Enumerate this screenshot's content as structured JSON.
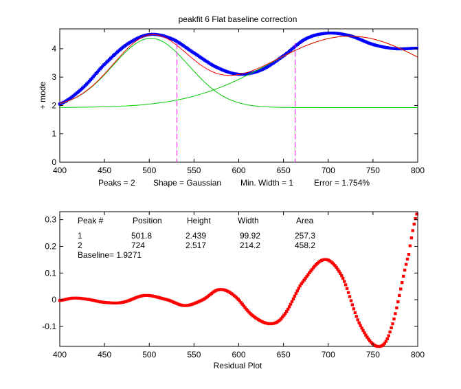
{
  "chart_data": [
    {
      "type": "line",
      "title": "peakfit 6   Flat baseline correction",
      "xlabel": "",
      "ylabel": "+ mode",
      "xlim": [
        400,
        800
      ],
      "ylim": [
        0,
        4.7
      ],
      "xticks": [
        400,
        450,
        500,
        550,
        600,
        650,
        700,
        750,
        800
      ],
      "yticks": [
        0,
        1,
        2,
        3,
        4
      ],
      "grid": false,
      "info_line": [
        "Peaks = 2",
        "Shape = Gaussian",
        "Min. Width = 1",
        "Error = 1.754%"
      ],
      "baseline": 1.9271,
      "components": [
        {
          "position": 501.8,
          "height": 2.439,
          "width": 99.92
        },
        {
          "position": 724,
          "height": 2.517,
          "width": 214.2
        }
      ],
      "markers_x": [
        531,
        663
      ],
      "series": [
        {
          "role": "data",
          "color": "#0000ff",
          "x": [
            400,
            425,
            450,
            475,
            500,
            525,
            550,
            575,
            600,
            625,
            650,
            675,
            700,
            725,
            750,
            775,
            800
          ],
          "y": [
            2.05,
            2.6,
            3.45,
            4.15,
            4.5,
            4.35,
            3.85,
            3.35,
            3.1,
            3.25,
            3.75,
            4.35,
            4.55,
            4.45,
            4.15,
            4.0,
            4.02
          ]
        },
        {
          "role": "fit",
          "color": "#ff0000"
        },
        {
          "role": "component",
          "color": "#00cc00"
        }
      ]
    },
    {
      "type": "line",
      "title": "",
      "xlabel": "Residual Plot",
      "ylabel": "",
      "xlim": [
        400,
        800
      ],
      "ylim": [
        -0.175,
        0.33
      ],
      "xticks": [
        400,
        450,
        500,
        550,
        600,
        650,
        700,
        750,
        800
      ],
      "yticks": [
        -0.1,
        0,
        0.1,
        0.2,
        0.3
      ],
      "grid": false,
      "series": [
        {
          "role": "residual",
          "color": "#ff0000",
          "x": [
            400,
            415,
            430,
            450,
            470,
            495,
            520,
            540,
            560,
            578,
            595,
            615,
            635,
            650,
            670,
            695,
            715,
            735,
            755,
            770,
            790,
            800
          ],
          "y": [
            -0.003,
            0.006,
            0.002,
            -0.01,
            -0.01,
            0.016,
            0.0,
            -0.022,
            0.0,
            0.038,
            0.015,
            -0.058,
            -0.09,
            -0.06,
            0.06,
            0.15,
            0.09,
            -0.09,
            -0.175,
            -0.11,
            0.17,
            0.33
          ]
        }
      ],
      "table": {
        "headers": [
          "Peak #",
          "Position",
          "Height",
          "Width",
          "Area"
        ],
        "rows": [
          [
            "1",
            "501.8",
            "2.439",
            "99.92",
            "257.3"
          ],
          [
            "2",
            "724",
            "2.517",
            "214.2",
            "458.2"
          ]
        ],
        "baseline_text": "Baseline= 1.9271"
      }
    }
  ]
}
